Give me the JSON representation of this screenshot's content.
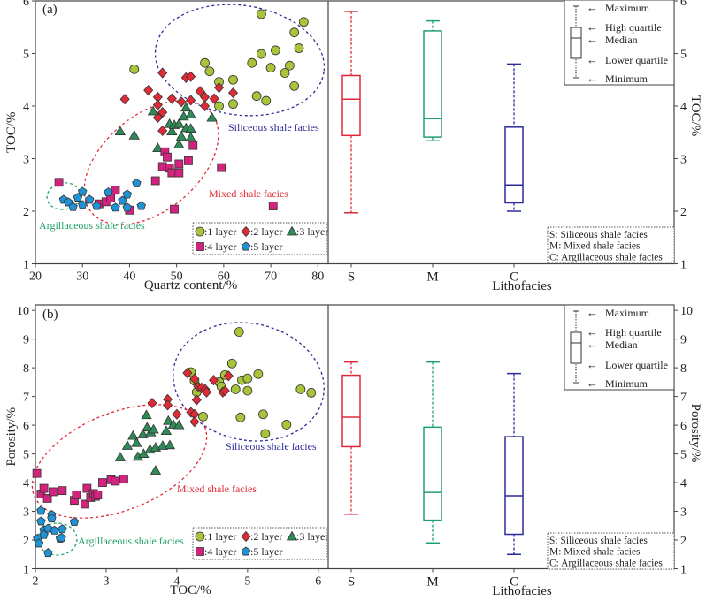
{
  "colors": {
    "layer1": "#a8c43a",
    "layer2": "#e02b36",
    "layer3": "#2e8b57",
    "layer4": "#d3237f",
    "layer5": "#1f93d6",
    "siliceous": "#2d2d96",
    "mixed": "#e02b36",
    "argillaceous": "#22a36a",
    "box_S": "#e0283a",
    "box_M": "#1fa070",
    "box_C": "#2a2a9a"
  },
  "legend_layers": [
    {
      "label": ":1 layer",
      "shape": "circle"
    },
    {
      "label": ":2 layer",
      "shape": "diamond"
    },
    {
      "label": ":3 layer",
      "shape": "triangle"
    },
    {
      "label": ":4 layer",
      "shape": "square"
    },
    {
      "label": ":5 layer",
      "shape": "pentagon"
    }
  ],
  "box_legend": [
    "Maximum",
    "High quartile",
    "Median",
    "Lower quartile",
    "Minimum"
  ],
  "box_legend_arrow": "←",
  "lithofacies_legend": [
    "S:  Siliceous shale facies",
    "M: Mixed shale facies",
    "C:  Argillaceous shale facies"
  ],
  "chart_data": [
    {
      "id": "a-scatter",
      "type": "scatter",
      "panel_label": "(a)",
      "xlabel": "Quartz content/%",
      "ylabel": "TOC/%",
      "xlim": [
        20,
        82.2
      ],
      "ylim": [
        1,
        6
      ],
      "xticks": [
        20,
        30,
        40,
        50,
        60,
        70,
        80
      ],
      "yticks": [
        1,
        2,
        3,
        4,
        5,
        6
      ],
      "annotations": [
        "Siliceous shale facies",
        "Mixed shale facies",
        "Argillaceous shale facies"
      ],
      "series": [
        {
          "name": "1 layer",
          "points": [
            [
              41,
              4.7
            ],
            [
              56,
              4.82
            ],
            [
              57,
              4.66
            ],
            [
              59,
              4.46
            ],
            [
              59,
              4.0
            ],
            [
              62,
              4.5
            ],
            [
              62,
              4.04
            ],
            [
              66,
              4.82
            ],
            [
              67,
              4.19
            ],
            [
              68,
              5.75
            ],
            [
              68,
              4.99
            ],
            [
              69,
              4.1
            ],
            [
              70,
              4.73
            ],
            [
              71,
              5.06
            ],
            [
              73,
              4.63
            ],
            [
              74,
              4.77
            ],
            [
              75,
              5.4
            ],
            [
              75,
              4.38
            ],
            [
              76,
              5.1
            ],
            [
              77,
              5.6
            ]
          ]
        },
        {
          "name": "2 layer",
          "points": [
            [
              39,
              4.13
            ],
            [
              44,
              4.3
            ],
            [
              46,
              4.17
            ],
            [
              46,
              4.02
            ],
            [
              46,
              3.78
            ],
            [
              47,
              4.63
            ],
            [
              47,
              3.88
            ],
            [
              47,
              3.53
            ],
            [
              49,
              4.14
            ],
            [
              51,
              4.08
            ],
            [
              52,
              4.54
            ],
            [
              53,
              4.56
            ],
            [
              53,
              4.11
            ],
            [
              55,
              4.28
            ],
            [
              56,
              4.17
            ],
            [
              56,
              4.0
            ],
            [
              58,
              4.14
            ],
            [
              59,
              4.35
            ],
            [
              62,
              4.25
            ]
          ]
        },
        {
          "name": "3 layer",
          "points": [
            [
              38,
              3.52
            ],
            [
              41,
              3.44
            ],
            [
              45,
              3.9
            ],
            [
              46,
              3.2
            ],
            [
              48.5,
              3.66
            ],
            [
              49,
              3.52
            ],
            [
              49.5,
              3.64
            ],
            [
              50.5,
              3.66
            ],
            [
              50.5,
              3.27
            ],
            [
              51,
              3.42
            ],
            [
              51.5,
              3.8
            ],
            [
              52,
              3.58
            ],
            [
              52,
              3.97
            ],
            [
              53,
              3.4
            ],
            [
              53,
              3.84
            ],
            [
              53,
              3.57
            ],
            [
              57.5,
              3.78
            ]
          ]
        },
        {
          "name": "4 layer",
          "points": [
            [
              25,
              2.55
            ],
            [
              33.5,
              2.14
            ],
            [
              35,
              2.18
            ],
            [
              36,
              2.25
            ],
            [
              37,
              2.4
            ],
            [
              40,
              2.02
            ],
            [
              45.5,
              2.58
            ],
            [
              47,
              2.85
            ],
            [
              47.5,
              3.13
            ],
            [
              48,
              3.03
            ],
            [
              48.5,
              2.82
            ],
            [
              49,
              2.73
            ],
            [
              49.5,
              2.04
            ],
            [
              50.5,
              2.9
            ],
            [
              50.5,
              2.73
            ],
            [
              52.5,
              2.96
            ],
            [
              53.5,
              3.25
            ],
            [
              59.5,
              2.83
            ],
            [
              70.5,
              2.1
            ]
          ]
        },
        {
          "name": "5 layer",
          "points": [
            [
              26,
              2.22
            ],
            [
              27,
              2.17
            ],
            [
              28,
              2.08
            ],
            [
              29,
              2.26
            ],
            [
              30,
              2.37
            ],
            [
              30,
              2.12
            ],
            [
              31.5,
              2.22
            ],
            [
              33,
              2.1
            ],
            [
              35.5,
              2.36
            ],
            [
              37,
              2.07
            ],
            [
              38.5,
              2.2
            ],
            [
              39.5,
              2.32
            ],
            [
              39.5,
              2.07
            ],
            [
              41.5,
              2.53
            ],
            [
              42.5,
              2.1
            ]
          ]
        }
      ]
    },
    {
      "id": "a-box",
      "type": "box",
      "xlabel": "Lithofacies",
      "ylabel": "TOC/%",
      "ylim": [
        1,
        6
      ],
      "yticks": [
        1,
        2,
        3,
        4,
        5,
        6
      ],
      "categories": [
        "S",
        "M",
        "C"
      ],
      "boxes": [
        {
          "min": 1.97,
          "q1": 3.44,
          "median": 4.13,
          "q3": 4.58,
          "max": 5.8
        },
        {
          "min": 3.34,
          "q1": 3.41,
          "median": 3.76,
          "q3": 5.43,
          "max": 5.62
        },
        {
          "min": 2.0,
          "q1": 2.16,
          "median": 2.5,
          "q3": 3.6,
          "max": 4.8
        }
      ]
    },
    {
      "id": "b-scatter",
      "type": "scatter",
      "panel_label": "(b)",
      "xlabel": "TOC/%",
      "ylabel": "Porosity/%",
      "xlim": [
        2,
        6.14
      ],
      "ylim": [
        1,
        10.19
      ],
      "xticks": [
        2,
        3,
        4,
        5,
        6
      ],
      "yticks": [
        1,
        2,
        3,
        4,
        5,
        6,
        7,
        8,
        9,
        10
      ],
      "annotations": [
        "Siliceous shale facies",
        "Mixed shale facies",
        "Argillaceous shale facies"
      ],
      "series": [
        {
          "name": "1 layer",
          "points": [
            [
              4.2,
              7.85
            ],
            [
              4.25,
              7.55
            ],
            [
              4.28,
              7.15
            ],
            [
              4.37,
              6.3
            ],
            [
              4.6,
              7.5
            ],
            [
              4.63,
              7.35
            ],
            [
              4.68,
              7.75
            ],
            [
              4.78,
              8.15
            ],
            [
              4.83,
              7.25
            ],
            [
              4.88,
              9.25
            ],
            [
              4.9,
              6.27
            ],
            [
              4.92,
              7.57
            ],
            [
              5.0,
              7.63
            ],
            [
              5.0,
              7.2
            ],
            [
              5.15,
              7.78
            ],
            [
              5.22,
              6.38
            ],
            [
              5.25,
              5.7
            ],
            [
              5.55,
              6.02
            ],
            [
              5.75,
              7.25
            ],
            [
              5.9,
              7.13
            ]
          ]
        },
        {
          "name": "2 layer",
          "points": [
            [
              3.65,
              6.77
            ],
            [
              3.87,
              6.9
            ],
            [
              3.87,
              6.7
            ],
            [
              4.0,
              6.38
            ],
            [
              4.15,
              7.82
            ],
            [
              4.2,
              6.45
            ],
            [
              4.25,
              6.38
            ],
            [
              4.25,
              6.12
            ],
            [
              4.25,
              7.62
            ],
            [
              4.28,
              6.88
            ],
            [
              4.3,
              7.35
            ],
            [
              4.35,
              7.3
            ],
            [
              4.4,
              7.25
            ],
            [
              4.42,
              7.15
            ],
            [
              4.52,
              7.57
            ],
            [
              4.65,
              7.15
            ],
            [
              4.68,
              7.2
            ],
            [
              4.73,
              7.72
            ]
          ]
        },
        {
          "name": "3 layer",
          "points": [
            [
              3.2,
              4.88
            ],
            [
              3.3,
              5.28
            ],
            [
              3.38,
              5.63
            ],
            [
              3.43,
              5.38
            ],
            [
              3.45,
              4.9
            ],
            [
              3.52,
              5.68
            ],
            [
              3.53,
              5.0
            ],
            [
              3.57,
              6.35
            ],
            [
              3.58,
              5.92
            ],
            [
              3.62,
              5.15
            ],
            [
              3.63,
              5.75
            ],
            [
              3.67,
              5.85
            ],
            [
              3.7,
              5.22
            ],
            [
              3.7,
              4.42
            ],
            [
              3.8,
              5.28
            ],
            [
              3.85,
              5.8
            ],
            [
              3.88,
              6.15
            ],
            [
              3.9,
              5.3
            ],
            [
              3.95,
              6.02
            ],
            [
              4.03,
              6.0
            ]
          ]
        },
        {
          "name": "4 layer",
          "points": [
            [
              2.02,
              4.32
            ],
            [
              2.08,
              3.6
            ],
            [
              2.12,
              3.8
            ],
            [
              2.17,
              3.45
            ],
            [
              2.25,
              3.68
            ],
            [
              2.38,
              3.72
            ],
            [
              2.55,
              3.38
            ],
            [
              2.58,
              3.57
            ],
            [
              2.7,
              3.25
            ],
            [
              2.73,
              3.8
            ],
            [
              2.78,
              3.48
            ],
            [
              2.82,
              3.62
            ],
            [
              2.85,
              3.52
            ],
            [
              2.88,
              3.57
            ],
            [
              2.95,
              4.0
            ],
            [
              3.07,
              4.1
            ],
            [
              3.13,
              4.05
            ],
            [
              3.25,
              4.12
            ]
          ]
        },
        {
          "name": "5 layer",
          "points": [
            [
              2.03,
              2.05
            ],
            [
              2.05,
              1.88
            ],
            [
              2.08,
              3.02
            ],
            [
              2.08,
              2.65
            ],
            [
              2.12,
              2.35
            ],
            [
              2.12,
              2.18
            ],
            [
              2.18,
              2.4
            ],
            [
              2.18,
              1.55
            ],
            [
              2.23,
              2.88
            ],
            [
              2.23,
              2.75
            ],
            [
              2.27,
              2.33
            ],
            [
              2.35,
              2.05
            ],
            [
              2.37,
              2.08
            ],
            [
              2.38,
              2.38
            ],
            [
              2.55,
              2.63
            ]
          ]
        }
      ]
    },
    {
      "id": "b-box",
      "type": "box",
      "xlabel": "Lithofacies",
      "ylabel": "Porosity/%",
      "ylim": [
        1,
        10.19
      ],
      "yticks": [
        1,
        2,
        3,
        4,
        5,
        6,
        7,
        8,
        9,
        10
      ],
      "categories": [
        "S",
        "M",
        "C"
      ],
      "boxes": [
        {
          "min": 2.9,
          "q1": 5.25,
          "median": 6.28,
          "q3": 7.74,
          "max": 8.2
        },
        {
          "min": 1.9,
          "q1": 2.69,
          "median": 3.66,
          "q3": 5.93,
          "max": 8.2
        },
        {
          "min": 1.5,
          "q1": 2.2,
          "median": 3.54,
          "q3": 5.6,
          "max": 7.8
        }
      ]
    }
  ]
}
